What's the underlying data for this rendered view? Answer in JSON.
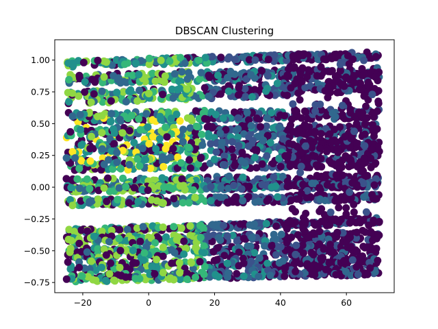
{
  "chart_data": {
    "type": "scatter",
    "title": "DBSCAN Clustering",
    "xlabel": "",
    "ylabel": "",
    "xlim": [
      -28.5,
      74.5
    ],
    "ylim": [
      -0.83,
      1.16
    ],
    "xticks": [
      -20,
      0,
      20,
      40,
      60
    ],
    "yticks": [
      -0.75,
      -0.5,
      -0.25,
      0.0,
      0.25,
      0.5,
      0.75,
      1.0
    ],
    "xtick_labels": [
      "−20",
      "0",
      "20",
      "40",
      "60"
    ],
    "ytick_labels": [
      "−0.75",
      "−0.50",
      "−0.25",
      "0.00",
      "0.25",
      "0.50",
      "0.75",
      "1.00"
    ],
    "grid": false,
    "legend": "none",
    "colormap": "viridis",
    "colors": {
      "noise": "#440154",
      "dark_blue": "#3b528b",
      "blue": "#31688e",
      "teal": "#21918c",
      "green": "#35b779",
      "light_green": "#90d743",
      "yellow": "#fde725"
    },
    "x_range": [
      -25,
      70
    ],
    "bands": [
      {
        "y_start": 0.97,
        "y_end": 1.04,
        "spread": 0.025
      },
      {
        "y_start": 0.85,
        "y_end": 0.9,
        "spread": 0.04
      },
      {
        "y_start": 0.7,
        "y_end": 0.8,
        "spread": 0.05
      },
      {
        "y_start": 0.55,
        "y_end": 0.58,
        "spread": 0.04
      },
      {
        "y_start": 0.42,
        "y_end": 0.45,
        "spread": 0.05
      },
      {
        "y_start": 0.3,
        "y_end": 0.33,
        "spread": 0.05
      },
      {
        "y_start": 0.18,
        "y_end": 0.21,
        "spread": 0.05
      },
      {
        "y_start": 0.03,
        "y_end": 0.06,
        "spread": 0.04
      },
      {
        "y_start": -0.02,
        "y_end": 0.02,
        "spread": 0.02
      },
      {
        "y_start": -0.12,
        "y_end": -0.08,
        "spread": 0.025
      },
      {
        "y_start": -0.35,
        "y_end": -0.26,
        "spread": 0.02
      },
      {
        "y_start": -0.42,
        "y_end": -0.38,
        "spread": 0.03
      },
      {
        "y_start": -0.52,
        "y_end": -0.48,
        "spread": 0.04
      },
      {
        "y_start": -0.62,
        "y_end": -0.58,
        "spread": 0.04
      },
      {
        "y_start": -0.72,
        "y_end": -0.66,
        "spread": 0.03
      }
    ]
  }
}
